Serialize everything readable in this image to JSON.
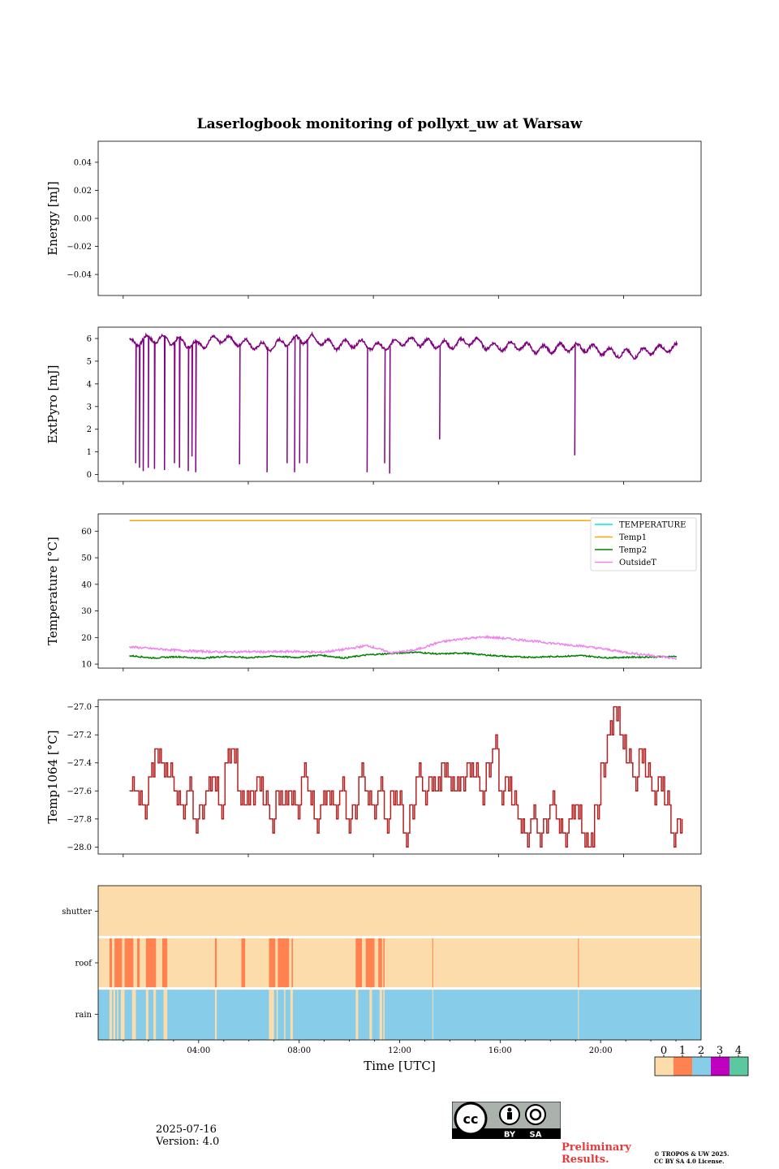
{
  "title": "Laserlogbook monitoring of pollyxt_uw at Warsaw",
  "footer": {
    "date": "2025-07-16",
    "version": "Version: 4.0",
    "preliminary_line1": "Preliminary",
    "preliminary_line2": "Results.",
    "copyright_line1": "© TROPOS & UW 2025.",
    "copyright_line2": "CC BY SA 4.0 License.",
    "license_badge": {
      "cc": "cc",
      "by": "BY",
      "sa": "SA"
    }
  },
  "chart_data": [
    {
      "id": "energy",
      "type": "line",
      "ylabel": "Energy [mJ]",
      "ylim": [
        -0.055,
        0.055
      ],
      "yticks": [
        -0.04,
        -0.02,
        0.0,
        0.02,
        0.04
      ],
      "ytick_labels": [
        "−0.04",
        "−0.02",
        "0.00",
        "0.02",
        "0.04"
      ],
      "series": []
    },
    {
      "id": "extpyro",
      "type": "line",
      "ylabel": "ExtPyro [mJ]",
      "ylim": [
        -0.3,
        6.5
      ],
      "yticks": [
        0,
        1,
        2,
        3,
        4,
        5,
        6
      ],
      "ytick_labels": [
        "0",
        "1",
        "2",
        "3",
        "4",
        "5",
        "6"
      ],
      "color": "#800080",
      "baseline_start_h": 0.8,
      "baseline_end_h": 22.7,
      "baseline_values": [
        5.8,
        6.0,
        5.9,
        5.7,
        6.0,
        5.8,
        5.6,
        5.9,
        6.0,
        5.7,
        5.8,
        5.6,
        5.9,
        5.8,
        5.7,
        5.9,
        5.6,
        5.7,
        5.5,
        5.6,
        5.6,
        5.4,
        5.3,
        5.5,
        5.6
      ],
      "drops": [
        {
          "t": 1.05,
          "v": 0.5
        },
        {
          "t": 1.2,
          "v": 0.3
        },
        {
          "t": 1.35,
          "v": 0.15
        },
        {
          "t": 1.55,
          "v": 0.3
        },
        {
          "t": 1.8,
          "v": 0.25
        },
        {
          "t": 2.2,
          "v": 0.2
        },
        {
          "t": 2.6,
          "v": 0.5
        },
        {
          "t": 2.8,
          "v": 0.3
        },
        {
          "t": 3.15,
          "v": 0.15
        },
        {
          "t": 3.3,
          "v": 0.8
        },
        {
          "t": 3.45,
          "v": 0.1
        },
        {
          "t": 5.2,
          "v": 0.45
        },
        {
          "t": 6.3,
          "v": 0.1
        },
        {
          "t": 7.1,
          "v": 0.5
        },
        {
          "t": 7.4,
          "v": 0.1
        },
        {
          "t": 7.6,
          "v": 0.5
        },
        {
          "t": 7.9,
          "v": 0.5
        },
        {
          "t": 10.3,
          "v": 0.1
        },
        {
          "t": 11.0,
          "v": 0.5
        },
        {
          "t": 11.2,
          "v": 0.05
        },
        {
          "t": 13.2,
          "v": 1.55
        },
        {
          "t": 18.6,
          "v": 0.85
        }
      ]
    },
    {
      "id": "temperature",
      "type": "line",
      "ylabel": "Temperature [°C]",
      "ylim": [
        8.5,
        66.5
      ],
      "yticks": [
        10,
        20,
        30,
        40,
        50,
        60
      ],
      "ytick_labels": [
        "10",
        "20",
        "30",
        "40",
        "50",
        "60"
      ],
      "legend_location": "top-right",
      "series": [
        {
          "name": "TEMPERATURE",
          "color": "#00e5ee",
          "values": []
        },
        {
          "name": "Temp1",
          "color": "#ffa500",
          "values": [
            64,
            64
          ]
        },
        {
          "name": "Temp2",
          "color": "#008000",
          "values": [
            13.2,
            12.3,
            12.8,
            12.2,
            12.9,
            12.4,
            13.0,
            12.5,
            13.4,
            12.3,
            13.5,
            14.0,
            14.5,
            13.8,
            14.2,
            13.4,
            12.8,
            12.6,
            12.9,
            13.2,
            12.4,
            12.6,
            12.7,
            12.9
          ]
        },
        {
          "name": "OutsideT",
          "color": "#ee82ee",
          "values": [
            16.5,
            15.8,
            15.2,
            14.8,
            14.5,
            14.7,
            14.6,
            14.8,
            14.4,
            15.5,
            17.0,
            14.2,
            15.3,
            18.2,
            19.6,
            20.2,
            19.5,
            18.6,
            17.6,
            16.8,
            15.6,
            14.2,
            13.2,
            12.0
          ]
        }
      ],
      "x_start_h": 0.8,
      "x_end_h": 22.7
    },
    {
      "id": "temp1064",
      "type": "line",
      "ylabel": "Temp1064 [°C]",
      "ylim": [
        -28.05,
        -26.95
      ],
      "yticks": [
        -28.0,
        -27.8,
        -27.6,
        -27.4,
        -27.2,
        -27.0
      ],
      "ytick_labels": [
        "−28.0",
        "−27.8",
        "−27.6",
        "−27.4",
        "−27.2",
        "−27.0"
      ],
      "color": "#b22222",
      "x_start_h": 0.8,
      "x_end_h": 22.7,
      "values": [
        -27.6,
        -27.6,
        -27.7,
        -27.5,
        -27.3,
        -27.4,
        -27.5,
        -27.6,
        -27.7,
        -27.6,
        -27.8,
        -27.7,
        -27.6,
        -27.5,
        -27.7,
        -27.4,
        -27.3,
        -27.6,
        -27.7,
        -27.6,
        -27.5,
        -27.7,
        -27.8,
        -27.6,
        -27.7,
        -27.6,
        -27.7,
        -27.5,
        -27.6,
        -27.8,
        -27.7,
        -27.6,
        -27.7,
        -27.6,
        -27.8,
        -27.7,
        -27.5,
        -27.6,
        -27.7,
        -27.6,
        -27.8,
        -27.6,
        -27.7,
        -27.9,
        -27.7,
        -27.5,
        -27.6,
        -27.5,
        -27.6,
        -27.4,
        -27.5,
        -27.6,
        -27.5,
        -27.4,
        -27.5,
        -27.6,
        -27.4,
        -27.3,
        -27.6,
        -27.5,
        -27.7,
        -27.8,
        -27.9,
        -27.8,
        -27.9,
        -27.8,
        -27.7,
        -27.8,
        -27.9,
        -27.8,
        -27.7,
        -27.9,
        -28.0,
        -27.7,
        -27.4,
        -27.2,
        -27.0,
        -27.2,
        -27.4,
        -27.5,
        -27.3,
        -27.5,
        -27.6,
        -27.5,
        -27.7,
        -27.9,
        -27.8
      ]
    },
    {
      "id": "status",
      "type": "heatmap",
      "rows": [
        "rain",
        "roof",
        "shutter"
      ],
      "xlabel": "Time [UTC]",
      "xlim_h": [
        0,
        24
      ],
      "xticks_h": [
        4,
        8,
        12,
        16,
        20
      ],
      "xtick_labels": [
        "04:00",
        "08:00",
        "12:00",
        "16:00",
        "20:00"
      ],
      "colorbar": {
        "labels": [
          "0",
          "1",
          "2",
          "3",
          "4"
        ],
        "colors": [
          "#fcdcaa",
          "#ff8250",
          "#87cdea",
          "#c000c0",
          "#5cc8a0"
        ]
      },
      "shutter_value": 0,
      "roof_default": 0,
      "rain_default": 2,
      "roof_1_segments": [
        [
          0.45,
          0.55
        ],
        [
          0.65,
          0.95
        ],
        [
          1.05,
          1.4
        ],
        [
          1.55,
          1.65
        ],
        [
          1.9,
          2.3
        ],
        [
          2.55,
          2.75
        ],
        [
          4.65,
          4.72
        ],
        [
          5.7,
          5.85
        ],
        [
          6.8,
          7.05
        ],
        [
          7.15,
          7.6
        ],
        [
          7.7,
          7.75
        ],
        [
          10.25,
          10.5
        ],
        [
          10.65,
          11.0
        ],
        [
          11.15,
          11.3
        ],
        [
          11.35,
          11.4
        ],
        [
          13.3,
          13.33
        ],
        [
          19.1,
          19.13
        ]
      ],
      "rain_0_segments": [
        [
          0.45,
          0.55
        ],
        [
          0.6,
          0.68
        ],
        [
          0.75,
          0.8
        ],
        [
          0.9,
          1.05
        ],
        [
          1.35,
          1.5
        ],
        [
          1.9,
          2.0
        ],
        [
          2.2,
          2.3
        ],
        [
          2.6,
          2.75
        ],
        [
          4.65,
          4.72
        ],
        [
          6.8,
          7.0
        ],
        [
          7.1,
          7.15
        ],
        [
          7.4,
          7.45
        ],
        [
          7.65,
          7.75
        ],
        [
          10.25,
          10.35
        ],
        [
          10.8,
          10.9
        ],
        [
          11.2,
          11.3
        ],
        [
          11.35,
          11.4
        ],
        [
          13.3,
          13.33
        ],
        [
          19.1,
          19.13
        ]
      ]
    }
  ]
}
